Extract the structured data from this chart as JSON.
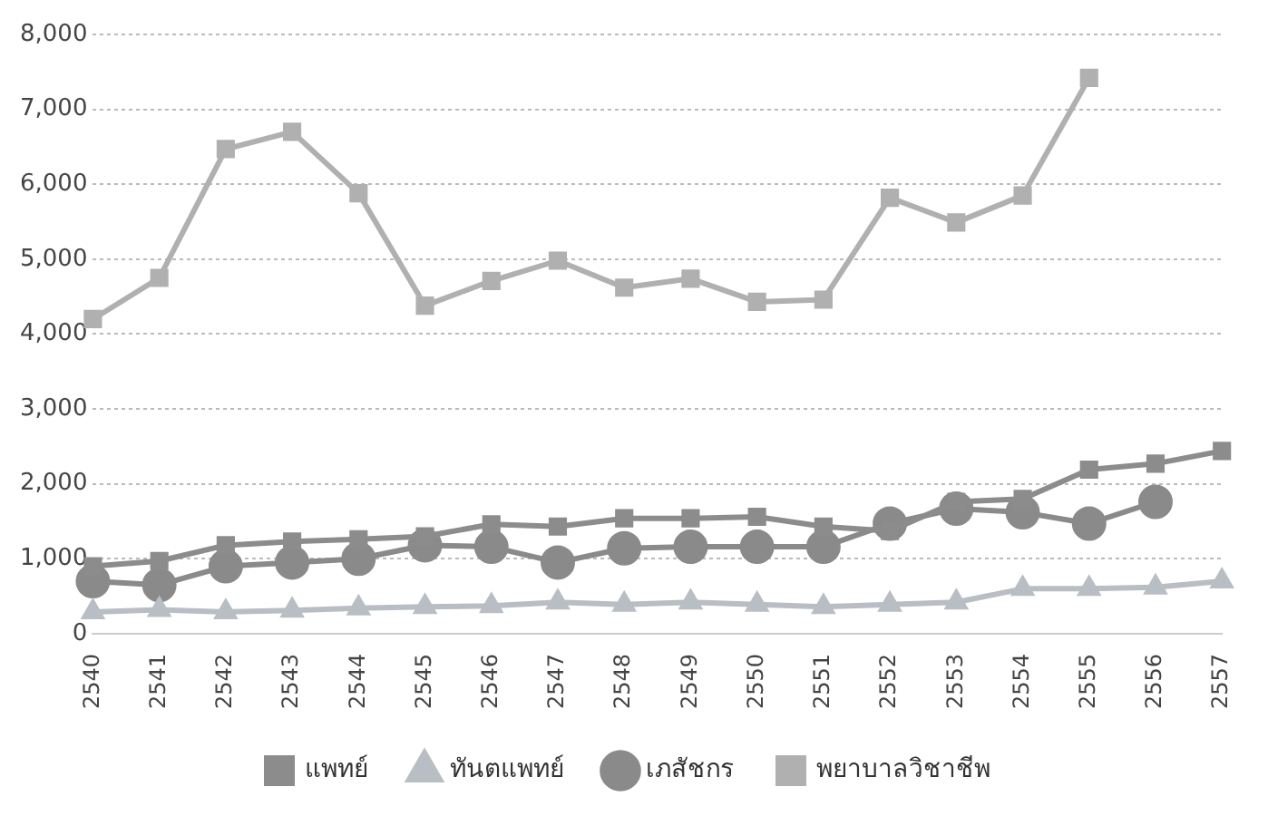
{
  "chart_data": {
    "type": "line",
    "categories": [
      "2540",
      "2541",
      "2542",
      "2543",
      "2544",
      "2545",
      "2546",
      "2547",
      "2548",
      "2549",
      "2550",
      "2551",
      "2552",
      "2553",
      "2554",
      "2555",
      "2556",
      "2557"
    ],
    "series": [
      {
        "name": "แพทย์",
        "color": "#8c8c8c",
        "marker": "square",
        "values": [
          900,
          970,
          1180,
          1230,
          1260,
          1300,
          1460,
          1430,
          1540,
          1540,
          1560,
          1430,
          1370,
          1760,
          1800,
          2190,
          2270,
          2440
        ]
      },
      {
        "name": "ทันตแพทย์",
        "color": "#b8bec4",
        "marker": "triangle",
        "values": [
          290,
          320,
          290,
          310,
          340,
          360,
          370,
          420,
          390,
          420,
          390,
          360,
          390,
          420,
          600,
          600,
          620,
          700
        ]
      },
      {
        "name": "เภสัชกร",
        "color": "#8a8a8a",
        "marker": "circle",
        "values": [
          700,
          650,
          900,
          950,
          1000,
          1180,
          1160,
          950,
          1140,
          1160,
          1160,
          1160,
          1470,
          1670,
          1620,
          1470,
          1760,
          null
        ]
      },
      {
        "name": "พยาบาลวิชาชีพ",
        "color": "#b0b0b0",
        "marker": "square",
        "values": [
          4200,
          4750,
          6470,
          6700,
          5880,
          4380,
          4710,
          4980,
          4620,
          4740,
          4430,
          4460,
          5820,
          5490,
          5850,
          7420,
          null,
          null
        ]
      }
    ],
    "ylim": [
      0,
      8000
    ],
    "yticks": [
      {
        "value": 0,
        "label": "0"
      },
      {
        "value": 1000,
        "label": "1,000"
      },
      {
        "value": 2000,
        "label": "2,000"
      },
      {
        "value": 3000,
        "label": "3,000"
      },
      {
        "value": 4000,
        "label": "4,000"
      },
      {
        "value": 5000,
        "label": "5,000"
      },
      {
        "value": 6000,
        "label": "6,000"
      },
      {
        "value": 7000,
        "label": "7,000"
      },
      {
        "value": 8000,
        "label": "8,000"
      }
    ],
    "grid": "y",
    "legend": "bottom"
  }
}
